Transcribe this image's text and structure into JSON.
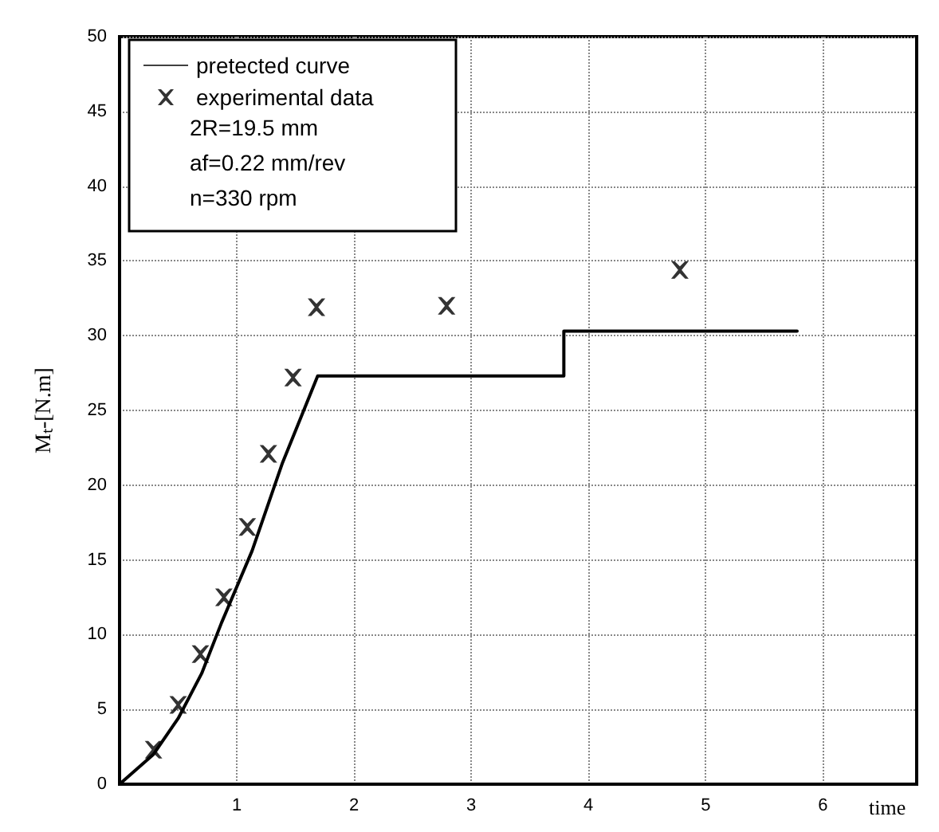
{
  "chart_data": {
    "type": "line",
    "xlabel": "time",
    "ylabel": "Mₜ-[N.m]",
    "xlim": [
      0,
      6.8
    ],
    "xticks": [
      1,
      2,
      3,
      4,
      5,
      6
    ],
    "ylim": [
      0,
      50
    ],
    "yticks": [
      0,
      5,
      10,
      15,
      20,
      25,
      30,
      35,
      40,
      45,
      50
    ],
    "grid": true,
    "legend": "top left",
    "annotations": [
      "2R=19.5 mm",
      "af=0.22 mm/rev",
      "n=330 rpm"
    ],
    "series": [
      {
        "name": "pretected curve",
        "color": "#000000",
        "marker": "none",
        "line_style": "solid",
        "x": [
          0,
          0.29,
          0.5,
          0.7,
          0.87,
          1.13,
          1.39,
          1.69,
          3.79,
          3.79,
          5.78
        ],
        "values": [
          0,
          2.0,
          4.4,
          7.4,
          10.8,
          15.6,
          21.5,
          27.3,
          27.3,
          30.3,
          30.3
        ]
      },
      {
        "name": "experimental data",
        "type": "scatter",
        "color": "#000000",
        "marker": "cross",
        "x": [
          0.29,
          0.5,
          0.69,
          0.89,
          1.09,
          1.27,
          1.48,
          1.68,
          2.79,
          4.78
        ],
        "values": [
          2.3,
          5.3,
          8.7,
          12.5,
          17.2,
          22.1,
          27.2,
          31.9,
          32,
          34.4
        ]
      }
    ]
  }
}
